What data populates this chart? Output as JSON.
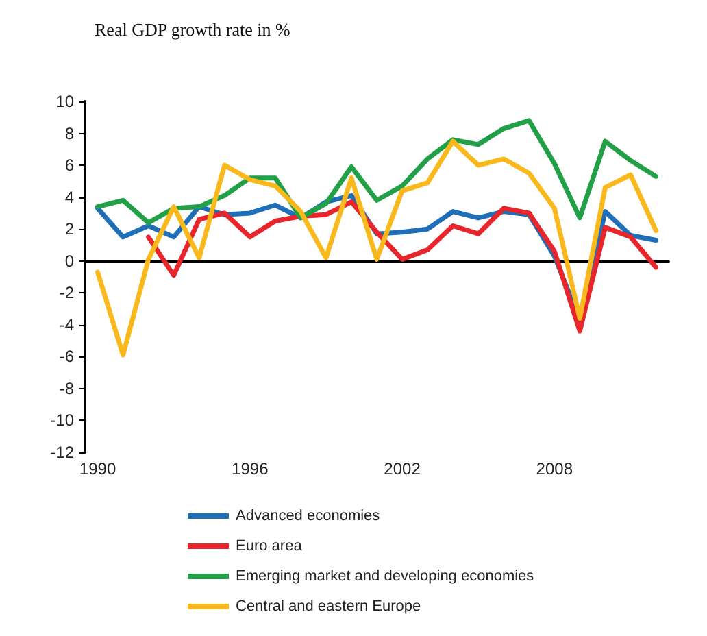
{
  "chart_data": {
    "type": "line",
    "title": "Real GDP growth rate in %",
    "categories": [
      "1990",
      null,
      null,
      null,
      null,
      null,
      "1996",
      null,
      null,
      null,
      null,
      null,
      "2002",
      null,
      null,
      null,
      null,
      null,
      "2008",
      null,
      null,
      null,
      null
    ],
    "series": [
      {
        "name": "Advanced economies",
        "color": "#1f6fb8",
        "values": [
          3.3,
          1.5,
          2.2,
          1.5,
          3.4,
          2.9,
          3.0,
          3.5,
          2.7,
          3.7,
          4.1,
          1.7,
          1.8,
          2.0,
          3.1,
          2.7,
          3.1,
          2.9,
          0.3,
          -3.7,
          3.1,
          1.6,
          1.3
        ]
      },
      {
        "name": "Euro area",
        "color": "#e8252a",
        "values": [
          null,
          null,
          1.5,
          -0.9,
          2.6,
          3.0,
          1.5,
          2.5,
          2.8,
          2.9,
          3.7,
          1.8,
          0.1,
          0.7,
          2.2,
          1.7,
          3.3,
          3.0,
          0.6,
          -4.4,
          2.1,
          1.5,
          -0.4
        ]
      },
      {
        "name": "Emerging market and developing economies",
        "color": "#22a048",
        "values": [
          3.4,
          3.8,
          2.4,
          3.3,
          3.4,
          4.1,
          5.2,
          5.2,
          2.7,
          3.6,
          5.9,
          3.8,
          4.7,
          6.4,
          7.6,
          7.3,
          8.3,
          8.8,
          6.1,
          2.7,
          7.5,
          6.3,
          5.3
        ]
      },
      {
        "name": "Central and eastern Europe",
        "color": "#f9b81b",
        "values": [
          -0.7,
          -5.9,
          0.1,
          3.4,
          0.2,
          6.0,
          5.1,
          4.7,
          3.1,
          0.2,
          5.2,
          0.1,
          4.4,
          4.9,
          7.5,
          6.0,
          6.4,
          5.5,
          3.3,
          -3.6,
          4.6,
          5.4,
          1.9
        ]
      }
    ],
    "ylim": [
      -12,
      10
    ],
    "yticks": [
      -12,
      -10,
      -8,
      -6,
      -4,
      -2,
      0,
      2,
      4,
      6,
      8,
      10
    ],
    "legend": "bottom",
    "marker": "none",
    "line_style": "solid"
  }
}
